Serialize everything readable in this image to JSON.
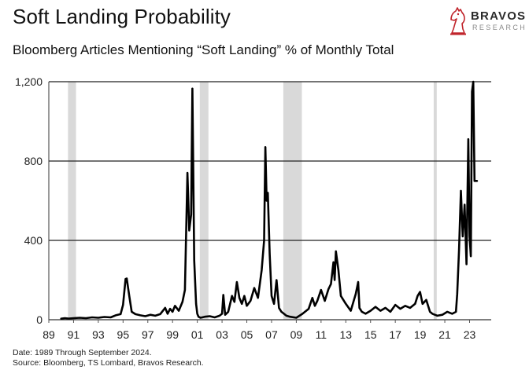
{
  "header": {
    "title": "Soft Landing Probability",
    "subtitle": "Bloomberg Articles Mentioning “Soft Landing” % of Monthly Total"
  },
  "logo": {
    "name": "BRAVOS",
    "tagline": "RESEARCH",
    "icon": "knight-chess-piece-icon",
    "accent_color": "#c0242b"
  },
  "footer": {
    "date_note": "Date: 1989 Through September 2024.",
    "source_note": "Source: Bloomberg, TS Lombard, Bravos Research."
  },
  "chart_data": {
    "type": "line",
    "title": "Soft Landing Probability",
    "subtitle": "Bloomberg Articles Mentioning “Soft Landing” % of Monthly Total",
    "xlabel": "",
    "ylabel": "",
    "xlim": [
      1989,
      2024.75
    ],
    "ylim": [
      0,
      1200
    ],
    "y_ticks": [
      0,
      400,
      800,
      1200
    ],
    "y_tick_labels": [
      "0",
      "400",
      "800",
      "1,200"
    ],
    "x_ticks": [
      1989,
      1991,
      1993,
      1995,
      1997,
      1999,
      2001,
      2003,
      2005,
      2007,
      2009,
      2011,
      2013,
      2015,
      2017,
      2019,
      2021,
      2023
    ],
    "x_tick_labels": [
      "89",
      "91",
      "93",
      "95",
      "97",
      "99",
      "01",
      "03",
      "05",
      "07",
      "09",
      "11",
      "13",
      "15",
      "17",
      "19",
      "21",
      "23"
    ],
    "grid": "horizontal",
    "line_color": "#000000",
    "recession_color": "#d9d9d9",
    "recessions": [
      [
        1990.55,
        1991.2
      ],
      [
        2001.2,
        2001.9
      ],
      [
        2007.95,
        2009.45
      ],
      [
        2020.1,
        2020.35
      ]
    ],
    "series": [
      {
        "x": [
          1990.0,
          1990.3,
          1990.6,
          1991.0,
          1991.5,
          1992.0,
          1992.5,
          1993.0,
          1993.5,
          1994.0,
          1994.4,
          1994.8,
          1995.0,
          1995.1,
          1995.2,
          1995.3,
          1995.5,
          1995.7,
          1996.0,
          1996.4,
          1996.8,
          1997.2,
          1997.6,
          1998.0,
          1998.4,
          1998.6,
          1998.8,
          1999.0,
          1999.2,
          1999.5,
          1999.8,
          2000.0,
          2000.2,
          2000.35,
          2000.5,
          2000.6,
          2000.75,
          2000.9,
          2001.0,
          2001.1,
          2001.25,
          2001.4,
          2001.6,
          2002.0,
          2002.4,
          2002.8,
          2003.0,
          2003.1,
          2003.25,
          2003.5,
          2003.8,
          2004.0,
          2004.2,
          2004.4,
          2004.6,
          2004.8,
          2005.0,
          2005.3,
          2005.6,
          2005.9,
          2006.2,
          2006.4,
          2006.5,
          2006.6,
          2006.7,
          2006.85,
          2007.0,
          2007.2,
          2007.4,
          2007.6,
          2007.8,
          2008.0,
          2008.2,
          2008.5,
          2009.0,
          2009.5,
          2010.0,
          2010.3,
          2010.5,
          2010.7,
          2011.0,
          2011.3,
          2011.6,
          2011.8,
          2012.0,
          2012.1,
          2012.2,
          2012.4,
          2012.6,
          2013.0,
          2013.4,
          2013.8,
          2014.0,
          2014.1,
          2014.3,
          2014.6,
          2015.0,
          2015.4,
          2015.8,
          2016.2,
          2016.6,
          2017.0,
          2017.4,
          2017.8,
          2018.2,
          2018.6,
          2018.8,
          2019.0,
          2019.2,
          2019.5,
          2019.8,
          2020.0,
          2020.4,
          2020.8,
          2021.2,
          2021.6,
          2021.9,
          2022.0,
          2022.15,
          2022.3,
          2022.45,
          2022.6,
          2022.75,
          2022.9,
          2023.0,
          2023.1,
          2023.2,
          2023.3,
          2023.4,
          2023.5,
          2023.6
        ],
        "y": [
          5,
          8,
          6,
          8,
          10,
          8,
          12,
          10,
          14,
          12,
          22,
          28,
          75,
          140,
          205,
          208,
          120,
          40,
          28,
          22,
          18,
          25,
          20,
          28,
          60,
          30,
          55,
          40,
          70,
          45,
          90,
          150,
          740,
          450,
          530,
          1165,
          300,
          80,
          30,
          15,
          10,
          12,
          15,
          18,
          12,
          20,
          30,
          125,
          25,
          40,
          120,
          90,
          190,
          110,
          80,
          120,
          70,
          95,
          160,
          110,
          250,
          400,
          870,
          600,
          640,
          330,
          120,
          80,
          200,
          60,
          40,
          30,
          20,
          15,
          10,
          30,
          55,
          110,
          70,
          95,
          150,
          95,
          155,
          180,
          290,
          200,
          345,
          250,
          120,
          80,
          45,
          130,
          190,
          60,
          40,
          30,
          45,
          65,
          45,
          60,
          40,
          75,
          55,
          70,
          60,
          80,
          120,
          140,
          80,
          100,
          40,
          30,
          20,
          25,
          40,
          30,
          40,
          130,
          350,
          650,
          420,
          580,
          280,
          910,
          420,
          320,
          1150,
          1200,
          700,
          700,
          700
        ]
      }
    ]
  }
}
